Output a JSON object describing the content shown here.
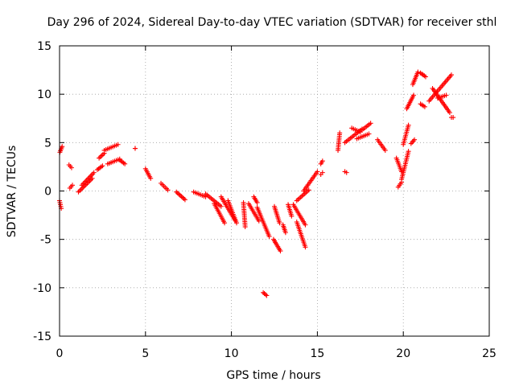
{
  "chart_data": {
    "type": "scatter",
    "title": "Day 296 of 2024, Sidereal Day-to-day VTEC variation (SDTVAR) for receiver sthl",
    "xlabel": "GPS time / hours",
    "ylabel": "SDTVAR / TECUs",
    "xlim": [
      0,
      25
    ],
    "ylim": [
      -15,
      15
    ],
    "xticks": [
      0,
      5,
      10,
      15,
      20,
      25
    ],
    "yticks": [
      -15,
      -10,
      -5,
      0,
      5,
      10,
      15
    ],
    "grid": true,
    "marker": "+",
    "colors": {
      "points": "#ff0000",
      "axes": "#000000",
      "grid": "#a0a0a0"
    },
    "segments": [
      {
        "x0": 0.0,
        "x1": 0.1,
        "y0": -1.0,
        "y1": -1.8
      },
      {
        "x0": 0.02,
        "x1": 0.15,
        "y0": 4.0,
        "y1": 4.6
      },
      {
        "x0": 0.55,
        "x1": 0.7,
        "y0": 2.7,
        "y1": 2.4
      },
      {
        "x0": 0.6,
        "x1": 0.75,
        "y0": 0.3,
        "y1": 0.6
      },
      {
        "x0": 1.1,
        "x1": 1.9,
        "y0": -0.1,
        "y1": 1.3
      },
      {
        "x0": 1.3,
        "x1": 2.0,
        "y0": 0.6,
        "y1": 1.9
      },
      {
        "x0": 2.2,
        "x1": 2.5,
        "y0": 2.2,
        "y1": 2.6
      },
      {
        "x0": 2.3,
        "x1": 2.6,
        "y0": 3.4,
        "y1": 3.9
      },
      {
        "x0": 2.6,
        "x1": 3.4,
        "y0": 4.2,
        "y1": 4.8
      },
      {
        "x0": 2.8,
        "x1": 3.5,
        "y0": 2.8,
        "y1": 3.3
      },
      {
        "x0": 3.5,
        "x1": 3.8,
        "y0": 3.2,
        "y1": 2.8
      },
      {
        "x0": 4.4,
        "x1": 4.4,
        "y0": 4.4,
        "y1": 4.4
      },
      {
        "x0": 5.0,
        "x1": 5.3,
        "y0": 2.3,
        "y1": 1.3
      },
      {
        "x0": 5.9,
        "x1": 6.3,
        "y0": 0.8,
        "y1": 0.1
      },
      {
        "x0": 6.8,
        "x1": 7.3,
        "y0": -0.1,
        "y1": -0.9
      },
      {
        "x0": 7.8,
        "x1": 8.5,
        "y0": -0.1,
        "y1": -0.6
      },
      {
        "x0": 8.5,
        "x1": 9.4,
        "y0": -0.3,
        "y1": -1.6
      },
      {
        "x0": 9.0,
        "x1": 9.6,
        "y0": -1.3,
        "y1": -3.3
      },
      {
        "x0": 9.4,
        "x1": 10.2,
        "y0": -0.6,
        "y1": -3.0
      },
      {
        "x0": 9.8,
        "x1": 10.3,
        "y0": -1.0,
        "y1": -3.3
      },
      {
        "x0": 10.7,
        "x1": 10.8,
        "y0": -1.2,
        "y1": -3.7
      },
      {
        "x0": 11.3,
        "x1": 11.5,
        "y0": -0.6,
        "y1": -1.2
      },
      {
        "x0": 11.0,
        "x1": 11.6,
        "y0": -1.3,
        "y1": -3.1
      },
      {
        "x0": 11.5,
        "x1": 12.2,
        "y0": -1.7,
        "y1": -4.7
      },
      {
        "x0": 11.85,
        "x1": 12.05,
        "y0": -10.5,
        "y1": -10.8
      },
      {
        "x0": 12.45,
        "x1": 12.85,
        "y0": -5.0,
        "y1": -6.2
      },
      {
        "x0": 12.5,
        "x1": 12.8,
        "y0": -1.6,
        "y1": -3.3
      },
      {
        "x0": 13.0,
        "x1": 13.15,
        "y0": -3.5,
        "y1": -4.3
      },
      {
        "x0": 13.3,
        "x1": 13.5,
        "y0": -1.4,
        "y1": -2.6
      },
      {
        "x0": 13.6,
        "x1": 14.3,
        "y0": -1.4,
        "y1": -3.5
      },
      {
        "x0": 13.8,
        "x1": 14.3,
        "y0": -3.2,
        "y1": -5.8
      },
      {
        "x0": 13.8,
        "x1": 14.5,
        "y0": -1.0,
        "y1": 0.1
      },
      {
        "x0": 14.2,
        "x1": 15.0,
        "y0": 0.0,
        "y1": 2.0
      },
      {
        "x0": 15.2,
        "x1": 15.3,
        "y0": 2.8,
        "y1": 3.1
      },
      {
        "x0": 15.2,
        "x1": 15.3,
        "y0": 1.7,
        "y1": 1.9
      },
      {
        "x0": 16.2,
        "x1": 16.3,
        "y0": 4.2,
        "y1": 6.0
      },
      {
        "x0": 16.6,
        "x1": 16.7,
        "y0": 2.0,
        "y1": 1.9
      },
      {
        "x0": 16.6,
        "x1": 17.6,
        "y0": 5.0,
        "y1": 6.4
      },
      {
        "x0": 17.0,
        "x1": 17.5,
        "y0": 6.5,
        "y1": 6.1
      },
      {
        "x0": 17.3,
        "x1": 18.0,
        "y0": 5.4,
        "y1": 5.9
      },
      {
        "x0": 17.6,
        "x1": 18.1,
        "y0": 6.3,
        "y1": 7.0
      },
      {
        "x0": 18.5,
        "x1": 18.95,
        "y0": 5.3,
        "y1": 4.2
      },
      {
        "x0": 19.6,
        "x1": 19.9,
        "y0": 3.4,
        "y1": 2.0
      },
      {
        "x0": 19.7,
        "x1": 19.9,
        "y0": 0.4,
        "y1": 0.9
      },
      {
        "x0": 19.9,
        "x1": 20.3,
        "y0": 1.2,
        "y1": 4.1
      },
      {
        "x0": 20.0,
        "x1": 20.3,
        "y0": 4.8,
        "y1": 6.8
      },
      {
        "x0": 20.2,
        "x1": 20.6,
        "y0": 8.5,
        "y1": 9.9
      },
      {
        "x0": 20.45,
        "x1": 20.65,
        "y0": 4.9,
        "y1": 5.3
      },
      {
        "x0": 20.55,
        "x1": 20.85,
        "y0": 11.0,
        "y1": 12.3
      },
      {
        "x0": 21.0,
        "x1": 21.3,
        "y0": 12.2,
        "y1": 11.8
      },
      {
        "x0": 21.0,
        "x1": 21.25,
        "y0": 9.0,
        "y1": 8.7
      },
      {
        "x0": 21.5,
        "x1": 22.8,
        "y0": 9.3,
        "y1": 12.0
      },
      {
        "x0": 21.7,
        "x1": 22.7,
        "y0": 10.6,
        "y1": 8.1
      },
      {
        "x0": 22.0,
        "x1": 22.5,
        "y0": 9.6,
        "y1": 9.9
      },
      {
        "x0": 22.8,
        "x1": 22.9,
        "y0": 7.6,
        "y1": 7.6
      }
    ]
  }
}
